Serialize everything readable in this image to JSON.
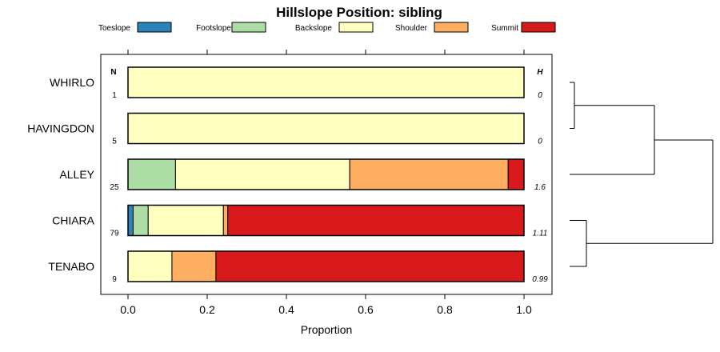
{
  "chart_data": {
    "type": "bar",
    "stacked": "horizontal-proportion",
    "title": "Hillslope Position: sibling",
    "xlabel": "Proportion",
    "xlim": [
      0,
      1
    ],
    "xticks": [
      "0.0",
      "0.2",
      "0.4",
      "0.6",
      "0.8",
      "1.0"
    ],
    "n_header": "N",
    "h_header": "H",
    "classes": [
      {
        "name": "Toeslope",
        "color": "#2b83ba"
      },
      {
        "name": "Footslope",
        "color": "#abdda4"
      },
      {
        "name": "Backslope",
        "color": "#ffffbf"
      },
      {
        "name": "Shoulder",
        "color": "#fdae61"
      },
      {
        "name": "Summit",
        "color": "#d7191c"
      }
    ],
    "rows": [
      {
        "label": "WHIRLO",
        "n": "1",
        "h": "0",
        "values": [
          0,
          0,
          1.0,
          0,
          0
        ]
      },
      {
        "label": "HAVINGDON",
        "n": "5",
        "h": "0",
        "values": [
          0,
          0,
          1.0,
          0,
          0
        ]
      },
      {
        "label": "ALLEY",
        "n": "25",
        "h": "1.6",
        "values": [
          0,
          0.12,
          0.44,
          0.4,
          0.04
        ]
      },
      {
        "label": "CHIARA",
        "n": "79",
        "h": "1.11",
        "values": [
          0.013,
          0.038,
          0.19,
          0.011,
          0.748
        ]
      },
      {
        "label": "TENABO",
        "n": "9",
        "h": "0.99",
        "values": [
          0,
          0,
          0.111,
          0.111,
          0.778
        ]
      }
    ],
    "dendrogram": "((WHIRLO,HAVINGDON),ALLEY),(CHIARA,TENABO)"
  }
}
